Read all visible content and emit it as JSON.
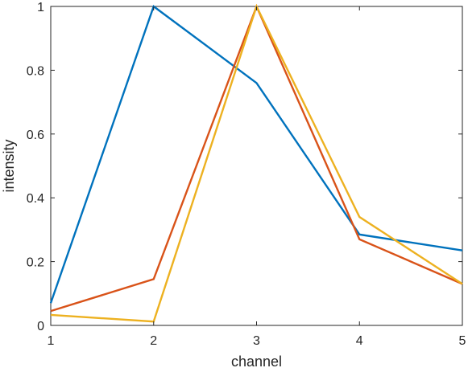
{
  "chart_data": {
    "type": "line",
    "xlabel": "channel",
    "ylabel": "intensity",
    "xlim": [
      1,
      5
    ],
    "ylim": [
      0,
      1
    ],
    "x_ticks": [
      "1",
      "2",
      "3",
      "4",
      "5"
    ],
    "y_ticks": [
      "0",
      "0.2",
      "0.4",
      "0.6",
      "0.8",
      "1"
    ],
    "grid": false,
    "x": [
      1,
      2,
      3,
      4,
      5
    ],
    "series": [
      {
        "color": "#0072BD",
        "values": [
          0.07,
          1.0,
          0.76,
          0.285,
          0.235
        ]
      },
      {
        "color": "#D95319",
        "values": [
          0.045,
          0.145,
          1.0,
          0.27,
          0.13
        ]
      },
      {
        "color": "#EDB120",
        "values": [
          0.033,
          0.012,
          1.0,
          0.34,
          0.13
        ]
      }
    ]
  }
}
